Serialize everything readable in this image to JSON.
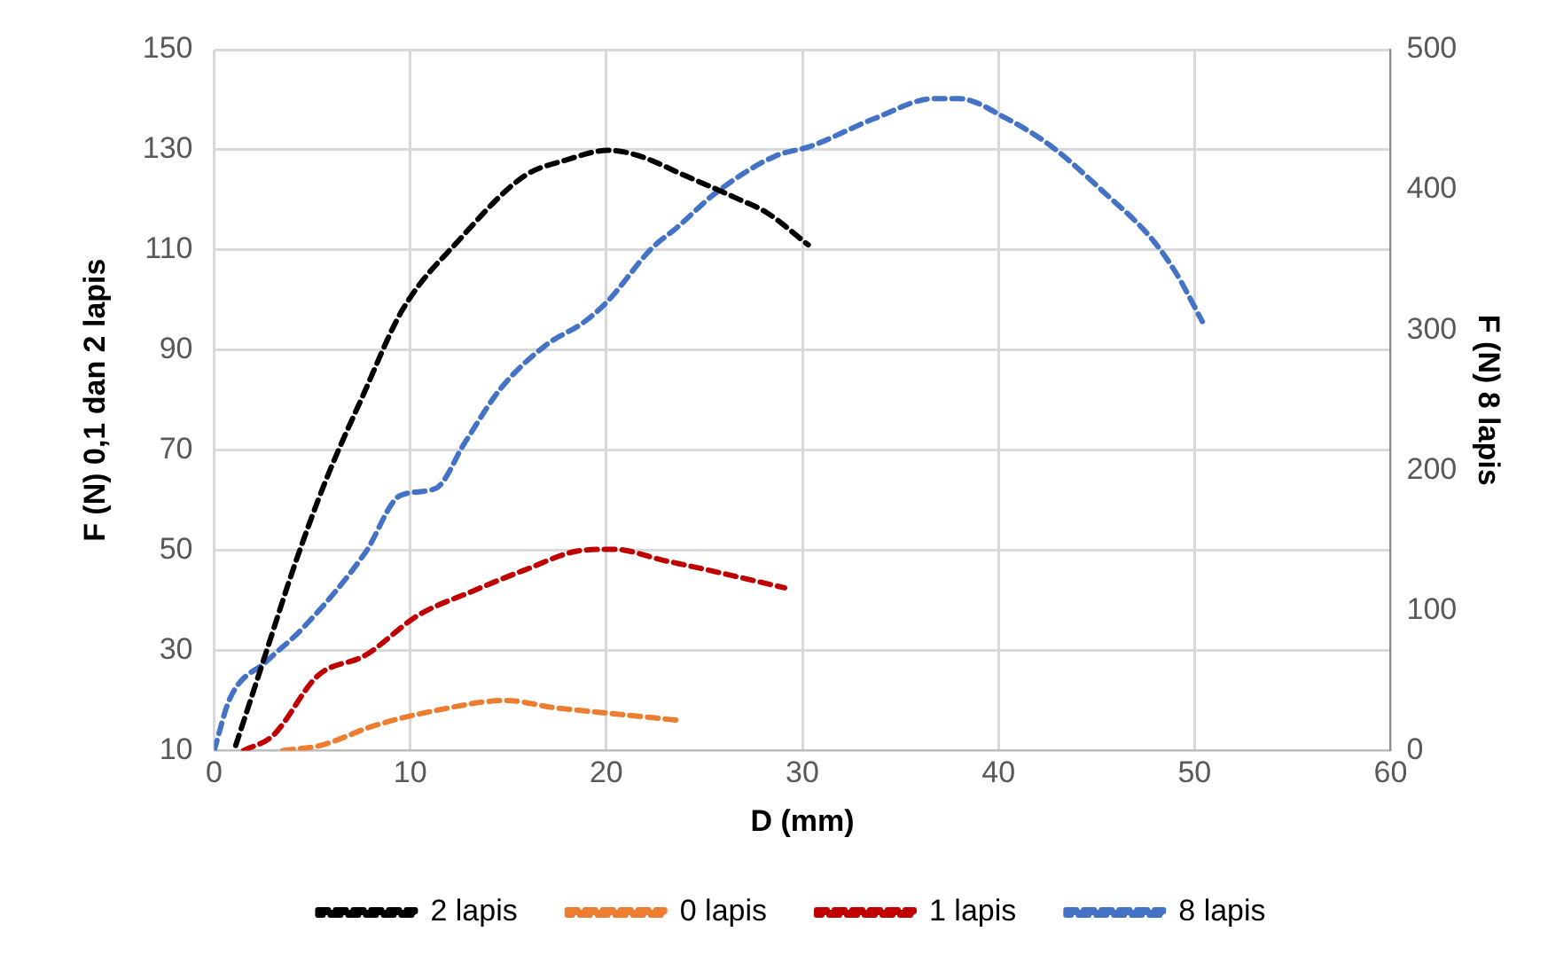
{
  "chart_data": {
    "type": "line",
    "xlabel": "D (mm)",
    "ylabel": "F (N) 0,1 dan 2 lapis",
    "y2label": "F (N) 8 lapis",
    "xlim": [
      0,
      60
    ],
    "xticks": [
      0,
      10,
      20,
      30,
      40,
      50,
      60
    ],
    "ylim": [
      10,
      150
    ],
    "yticks": [
      10,
      30,
      50,
      70,
      90,
      110,
      130,
      150
    ],
    "y2lim": [
      0,
      500
    ],
    "y2ticks": [
      0,
      100,
      200,
      300,
      400,
      500
    ],
    "grid": true,
    "legend": "bottom",
    "marker": "none",
    "line_style": "dashed",
    "series": [
      {
        "name": "2 lapis",
        "color": "#000000",
        "x": [
          1.1,
          2.6,
          4.1,
          5.7,
          7.6,
          9.6,
          12.5,
          15.8,
          18,
          20.1,
          21.5,
          24.1,
          26.6,
          28.2,
          30.3
        ],
        "values": [
          11,
          29,
          47,
          64,
          81,
          98,
          112,
          124.7,
          128,
          129.9,
          129,
          124.7,
          120.4,
          117.4,
          111
        ]
      },
      {
        "name": "0 lapis",
        "color": "#ed7d31",
        "x": [
          3.5,
          5.4,
          8.2,
          11.3,
          14.9,
          17.3,
          20.5,
          23.8
        ],
        "values": [
          10,
          11,
          15,
          18,
          20,
          18.6,
          17.3,
          16
        ]
      },
      {
        "name": "1 lapis",
        "color": "#c00000",
        "x": [
          1.5,
          3,
          5.3,
          7.7,
          10.4,
          13.1,
          15.8,
          18.8,
          20.4,
          22.9,
          24.8,
          29.1
        ],
        "values": [
          10,
          13,
          25,
          29,
          37,
          41.7,
          46,
          50,
          50.2,
          48,
          46.4,
          42.5
        ]
      },
      {
        "name": "8 lapis",
        "color": "#4472c4",
        "axis": "y2",
        "x": [
          0,
          0.8,
          2.7,
          4.5,
          7.7,
          9.5,
          11.3,
          12.8,
          14.6,
          16.9,
          18.9,
          20.1,
          22.3,
          23.6,
          25.6,
          28.6,
          30.4,
          33.7,
          36.7,
          38,
          40.4,
          42.7,
          45.4,
          47.7,
          49,
          50.4
        ],
        "values": [
          0,
          37,
          64,
          87,
          141,
          182,
          187,
          220,
          258,
          289,
          306,
          321,
          358,
          373,
          398,
          424,
          431,
          451,
          465,
          465,
          451,
          431,
          398,
          367,
          342,
          306
        ]
      }
    ]
  }
}
